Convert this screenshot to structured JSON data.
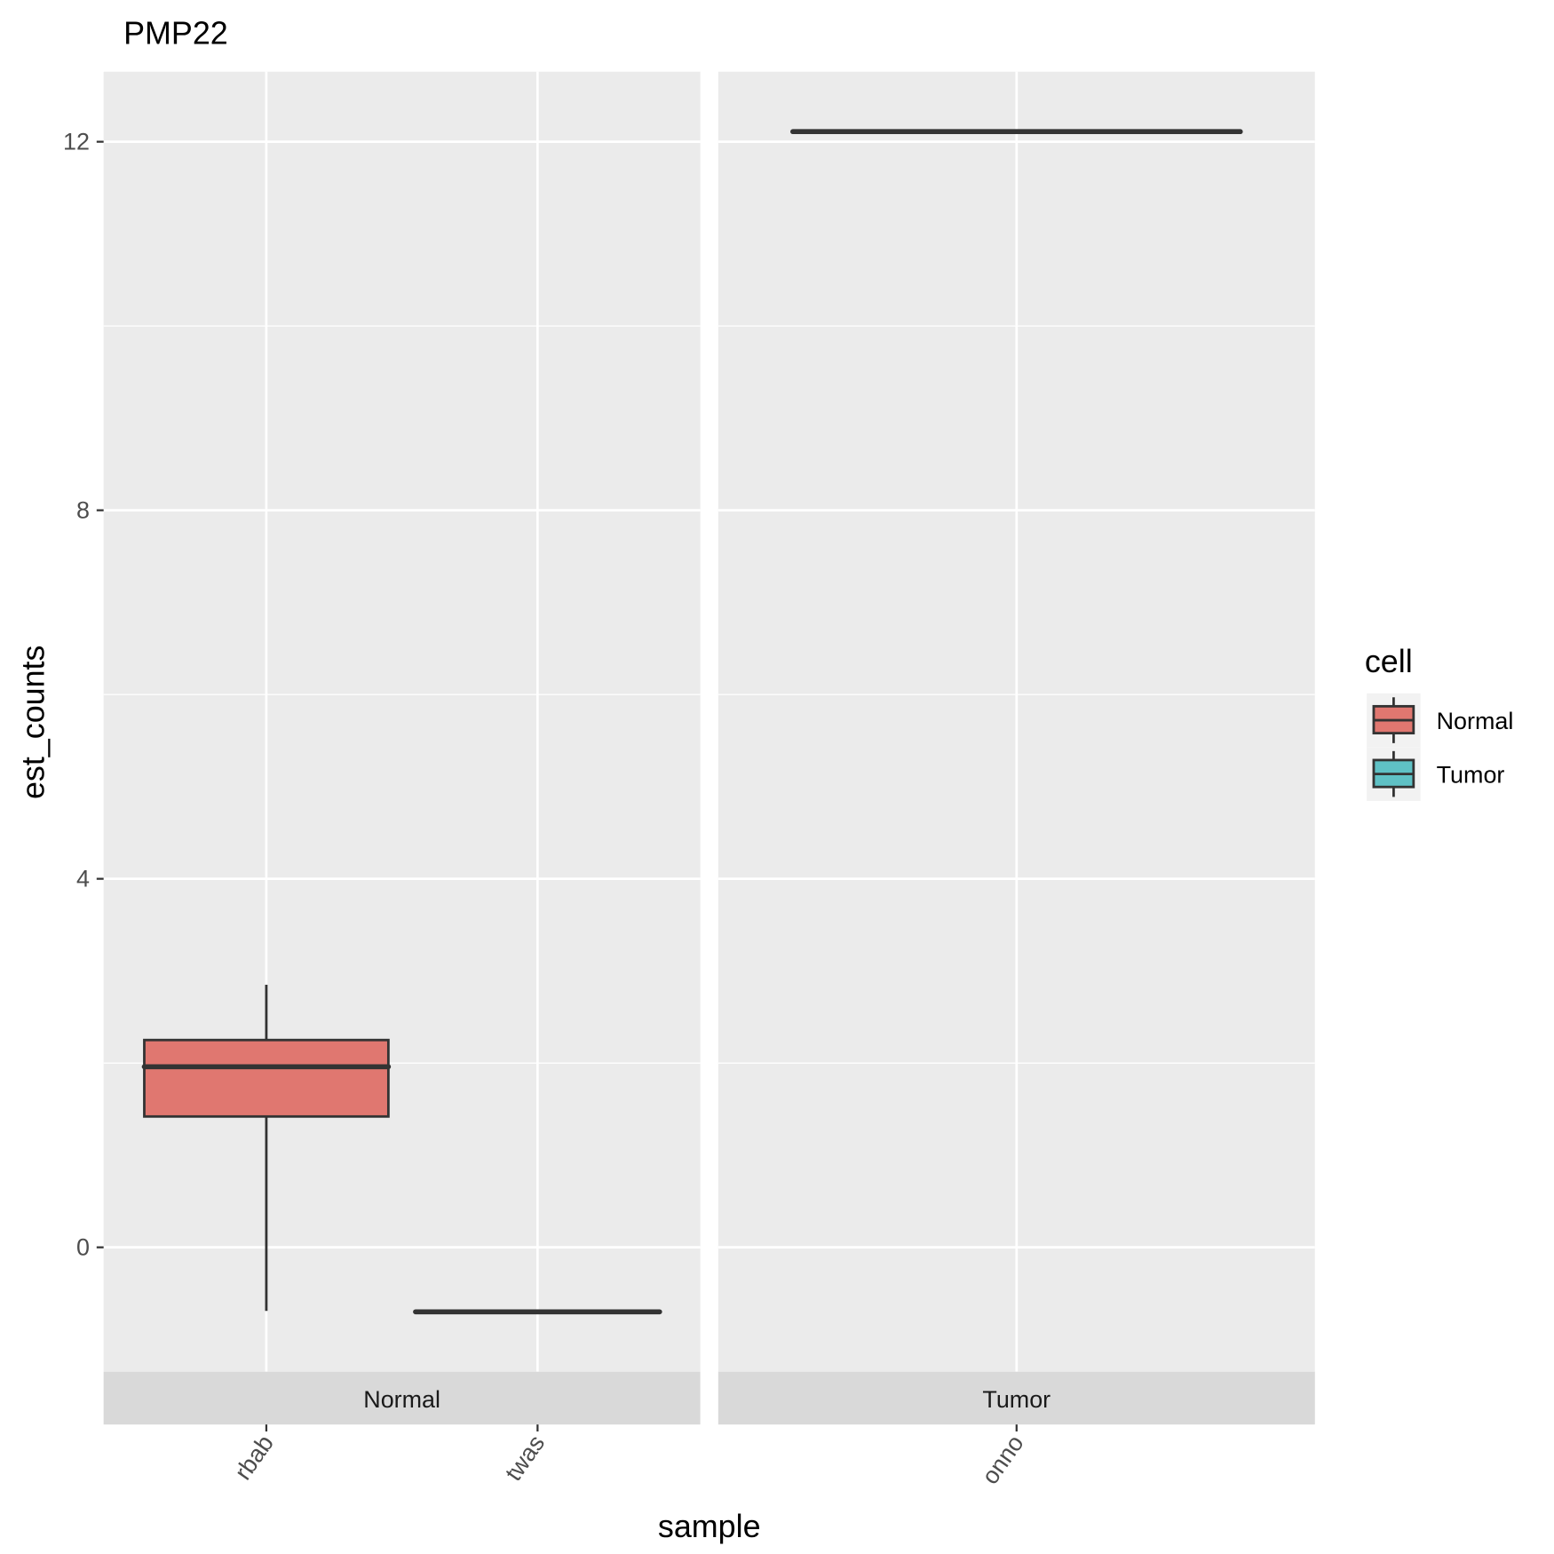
{
  "chart_data": {
    "type": "boxplot",
    "title": "PMP22",
    "xlabel": "sample",
    "ylabel": "est_counts",
    "ylim": [
      -1.35,
      12.76
    ],
    "yticks": [
      0,
      4,
      8,
      12
    ],
    "yminor": [
      2,
      6,
      10
    ],
    "grid": true,
    "facets": [
      {
        "label": "Normal",
        "categories": [
          "rbab",
          "twas"
        ]
      },
      {
        "label": "Tumor",
        "categories": [
          "onno"
        ]
      }
    ],
    "boxes": [
      {
        "facet": "Normal",
        "sample": "rbab",
        "cell": "Normal",
        "whisker_low": -0.69,
        "q1": 1.42,
        "median": 1.96,
        "q3": 2.25,
        "whisker_high": 2.85
      },
      {
        "facet": "Normal",
        "sample": "twas",
        "cell": "Normal",
        "whisker_low": -0.7,
        "q1": -0.7,
        "median": -0.7,
        "q3": -0.7,
        "whisker_high": -0.7
      },
      {
        "facet": "Tumor",
        "sample": "onno",
        "cell": "Tumor",
        "whisker_low": 12.11,
        "q1": 12.11,
        "median": 12.11,
        "q3": 12.11,
        "whisker_high": 12.11
      }
    ],
    "legend": {
      "title": "cell",
      "position": "right",
      "entries": [
        {
          "label": "Normal",
          "color": "#E07770"
        },
        {
          "label": "Tumor",
          "color": "#5FC1C5"
        }
      ]
    }
  }
}
